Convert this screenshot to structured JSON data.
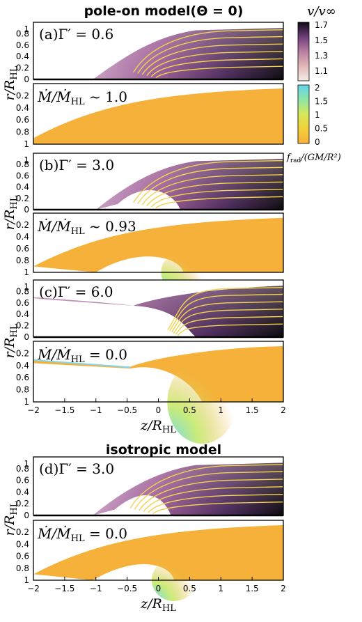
{
  "titles": {
    "top": "pole-on model(Θ = 0)",
    "bottom": "isotropic model"
  },
  "panels": [
    {
      "label": "(a)",
      "gamma": "Γ′ = 0.6",
      "mdot": "Ṁ/Ṁ",
      "mdot_sub": "HL",
      "mdot_value": " ~ 1.0"
    },
    {
      "label": "(b)",
      "gamma": "Γ′ = 3.0",
      "mdot": "Ṁ/Ṁ",
      "mdot_sub": "HL",
      "mdot_value": " ~ 0.93"
    },
    {
      "label": "(c)",
      "gamma": "Γ′ = 6.0",
      "mdot": "Ṁ/Ṁ",
      "mdot_sub": "HL",
      "mdot_value": " = 0.0"
    },
    {
      "label": "(d)",
      "gamma": "Γ′ = 3.0",
      "mdot": "Ṁ/Ṁ",
      "mdot_sub": "HL",
      "mdot_value": " = 0.0"
    }
  ],
  "axes": {
    "r_label": "r",
    "r_sub": "HL",
    "z_label": "z",
    "z_sub": "HL",
    "r_div": "/R",
    "z_div": "/R",
    "r_ticks_upper": [
      "0.8",
      "0.6",
      "0.4",
      "0.2",
      "0"
    ],
    "r_ticks_upper_top": "1",
    "r_ticks_lower": [
      "0.2",
      "0.4",
      "0.6",
      "0.8",
      "1"
    ],
    "z_ticks": [
      "−2",
      "−1.5",
      "−1",
      "−0.5",
      "0",
      "0.5",
      "1",
      "1.5",
      "2"
    ]
  },
  "colorbars": {
    "velocity": {
      "label": "v/v∞",
      "ticks": [
        "1.7",
        "1.5",
        "1.3",
        "1.1"
      ]
    },
    "force": {
      "label": "f",
      "sub": "rad",
      "tail": "/(GM/R²)",
      "ticks": [
        "2",
        "1.5",
        "1",
        "0.5",
        "0"
      ]
    }
  },
  "colors": {
    "orange": "#f6b13a",
    "yellow_line": "#f2d34e",
    "velocity_low": "#e8c7c1",
    "velocity_mid": "#a85a8c",
    "velocity_high": "#1a0f1a",
    "cyan": "#6ad8e8"
  },
  "chart_data": {
    "type": "heatmap",
    "x_axis": "z/R_HL",
    "xlim": [
      -2,
      2
    ],
    "y_axis_upper": "r/R_HL",
    "ylim_upper": [
      0,
      1
    ],
    "y_axis_lower": "r/R_HL",
    "ylim_lower": [
      1,
      0
    ],
    "velocity_colorbar_range": [
      1.0,
      1.7
    ],
    "force_colorbar_range": [
      0,
      2
    ],
    "panels": [
      {
        "id": "a",
        "model": "pole-on",
        "gamma_prime": 0.6,
        "mdot_ratio": 1.0,
        "mdot_relation": "~"
      },
      {
        "id": "b",
        "model": "pole-on",
        "gamma_prime": 3.0,
        "mdot_ratio": 0.93,
        "mdot_relation": "~"
      },
      {
        "id": "c",
        "model": "pole-on",
        "gamma_prime": 6.0,
        "mdot_ratio": 0.0,
        "mdot_relation": "="
      },
      {
        "id": "d",
        "model": "isotropic",
        "gamma_prime": 3.0,
        "mdot_ratio": 0.0,
        "mdot_relation": "="
      }
    ]
  }
}
